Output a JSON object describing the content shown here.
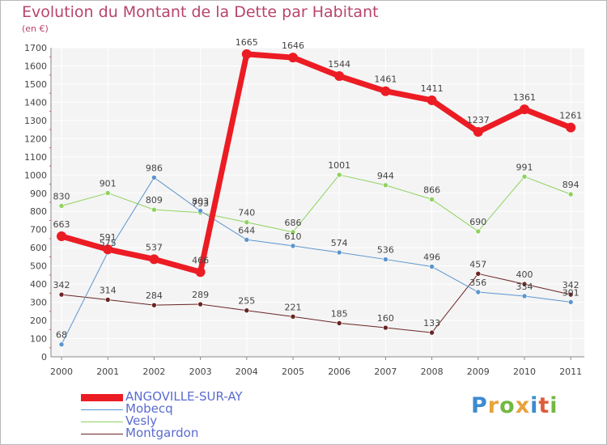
{
  "header": {
    "title": "Evolution du Montant de la Dette par Habitant",
    "subtitle": "(en €)"
  },
  "logo": {
    "text": "Proxiti",
    "colors": [
      "#3c8bd1",
      "#e8a33b",
      "#74b843",
      "#e8a33b",
      "#3c8bd1",
      "#e05a3a",
      "#74b843"
    ]
  },
  "chart_data": {
    "type": "line",
    "x": [
      "2000",
      "2001",
      "2002",
      "2003",
      "2004",
      "2005",
      "2006",
      "2007",
      "2008",
      "2009",
      "2010",
      "2011"
    ],
    "ylim": [
      0,
      1700
    ],
    "yticks": [
      0,
      100,
      200,
      300,
      400,
      500,
      600,
      700,
      800,
      900,
      1000,
      1100,
      1200,
      1300,
      1400,
      1500,
      1600,
      1700
    ],
    "grid": true,
    "legend_position": "bottom-left",
    "series": [
      {
        "name": "ANGOVILLE-SUR-AY",
        "color": "#ec1c24",
        "values": [
          663,
          591,
          537,
          466,
          1665,
          1646,
          1544,
          1461,
          1411,
          1237,
          1361,
          1261
        ]
      },
      {
        "name": "Mobecq",
        "color": "#5b95cf",
        "values": [
          68,
          575,
          986,
          803,
          644,
          610,
          574,
          536,
          496,
          356,
          334,
          301
        ]
      },
      {
        "name": "Vesly",
        "color": "#8fd25e",
        "values": [
          830,
          901,
          809,
          793,
          740,
          686,
          1001,
          944,
          866,
          690,
          991,
          894
        ]
      },
      {
        "name": "Montgardon",
        "color": "#6b2424",
        "values": [
          342,
          314,
          284,
          289,
          255,
          221,
          185,
          160,
          133,
          457,
          400,
          342
        ]
      }
    ]
  }
}
